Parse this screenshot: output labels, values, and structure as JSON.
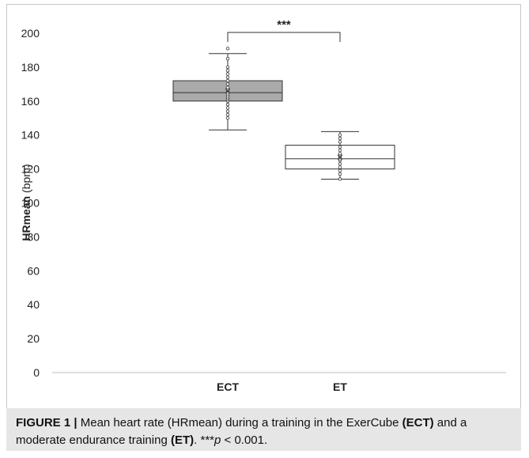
{
  "chart_data": {
    "type": "box",
    "categories": [
      "ECT",
      "ET"
    ],
    "ylabel_bold": "HRmean",
    "ylabel_rest": " (bpm)",
    "ylim": [
      0,
      200
    ],
    "yticks": [
      0,
      20,
      40,
      60,
      80,
      100,
      120,
      140,
      160,
      180,
      200
    ],
    "grid": false,
    "boxes": [
      {
        "name": "ECT",
        "whisker_low": 143,
        "q1": 160,
        "median": 165,
        "q3": 172,
        "whisker_high": 188,
        "mean": 166,
        "fill": "#aaaaaa",
        "points": [
          150,
          152,
          154,
          156,
          158,
          160,
          161,
          162,
          163,
          164,
          165,
          166,
          167,
          168,
          170,
          172,
          174,
          176,
          178,
          180,
          185,
          191
        ]
      },
      {
        "name": "ET",
        "whisker_low": 114,
        "q1": 120,
        "median": 126,
        "q3": 134,
        "whisker_high": 142,
        "mean": 127,
        "fill": "#ffffff",
        "points": [
          114,
          117,
          119,
          121,
          123,
          125,
          126,
          127,
          128,
          129,
          131,
          133,
          136,
          138,
          140
        ]
      }
    ],
    "significance": {
      "label": "***",
      "from": "ECT",
      "to": "ET"
    }
  },
  "caption": {
    "figure": "FIGURE 1",
    "separator": "|",
    "text1": " Mean heart rate (HRmean) during a training in the ExerCube ",
    "abbr1": "(ECT)",
    "text2": " and a moderate endurance training ",
    "abbr2": "(ET)",
    "text3": ". ***",
    "p": "p",
    "text4": " < 0.001."
  },
  "colors": {
    "axis": "#bfbfbf",
    "stroke": "#333333"
  }
}
